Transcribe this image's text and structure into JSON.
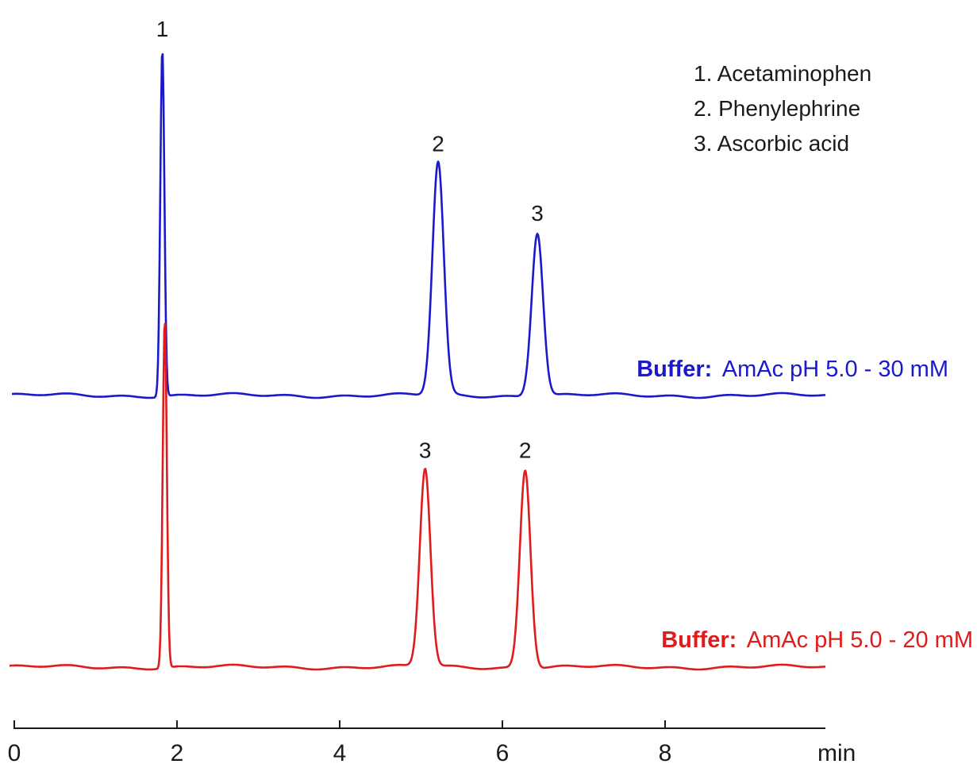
{
  "chart_data": {
    "type": "line",
    "xlabel": "",
    "x_unit": "min",
    "xlim": [
      0,
      10
    ],
    "x_ticks": [
      0,
      2,
      4,
      6,
      8
    ],
    "grid": false,
    "legend": {
      "placement": "top-right",
      "entries": [
        "1. Acetaminophen",
        "2. Phenylephrine",
        "3. Ascorbic acid"
      ]
    },
    "series": [
      {
        "label_bold": "Buffer:",
        "label_text": "AmAc pH 5.0 - 30 mM",
        "color": "#1a1acc",
        "baseline": 0,
        "peaks": [
          {
            "label": "1",
            "t": 1.82,
            "height": 1.0,
            "width": 0.025
          },
          {
            "label": "2",
            "t": 5.21,
            "height": 0.67,
            "width": 0.07
          },
          {
            "label": "3",
            "t": 6.43,
            "height": 0.47,
            "width": 0.07
          }
        ]
      },
      {
        "label_bold": "Buffer:",
        "label_text": "AmAc pH 5.0 - 20 mM",
        "color": "#e01b1b",
        "baseline": 0,
        "peaks": [
          {
            "label": "",
            "t": 1.85,
            "height": 1.0,
            "width": 0.025
          },
          {
            "label": "3",
            "t": 5.05,
            "height": 0.57,
            "width": 0.065
          },
          {
            "label": "2",
            "t": 6.28,
            "height": 0.57,
            "width": 0.065
          }
        ]
      }
    ]
  }
}
